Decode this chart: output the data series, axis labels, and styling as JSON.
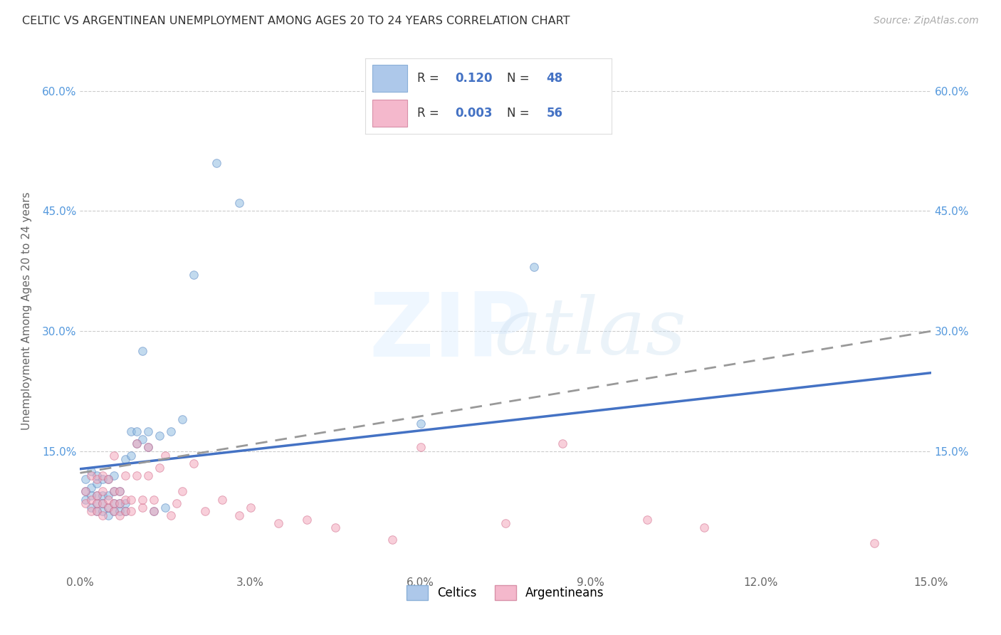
{
  "title": "CELTIC VS ARGENTINEAN UNEMPLOYMENT AMONG AGES 20 TO 24 YEARS CORRELATION CHART",
  "source": "Source: ZipAtlas.com",
  "ylabel": "Unemployment Among Ages 20 to 24 years",
  "xlim": [
    0.0,
    0.15
  ],
  "ylim": [
    0.0,
    0.65
  ],
  "xticks": [
    0.0,
    0.03,
    0.06,
    0.09,
    0.12,
    0.15
  ],
  "yticks": [
    0.15,
    0.3,
    0.45,
    0.6
  ],
  "xticklabels": [
    "0.0%",
    "3.0%",
    "6.0%",
    "9.0%",
    "12.0%",
    "15.0%"
  ],
  "yticklabels": [
    "15.0%",
    "30.0%",
    "45.0%",
    "60.0%"
  ],
  "celtics_color": "#90bce0",
  "argentineans_color": "#f4a8bc",
  "celtics_edge": "#5080c0",
  "argentineans_edge": "#d06888",
  "trend_celtic_color": "#4472c4",
  "trend_arg_color": "#c87898",
  "background_color": "#ffffff",
  "grid_color": "#cccccc",
  "marker_size": 70,
  "marker_alpha": 0.55,
  "celtics_R": "0.120",
  "celtics_N": "48",
  "argentineans_R": "0.003",
  "argentineans_N": "56",
  "celtics_legend_color": "#adc8ea",
  "argentineans_legend_color": "#f4b8cc",
  "celtics_x": [
    0.001,
    0.001,
    0.001,
    0.002,
    0.002,
    0.002,
    0.002,
    0.003,
    0.003,
    0.003,
    0.003,
    0.003,
    0.004,
    0.004,
    0.004,
    0.004,
    0.005,
    0.005,
    0.005,
    0.005,
    0.006,
    0.006,
    0.006,
    0.006,
    0.007,
    0.007,
    0.007,
    0.008,
    0.008,
    0.008,
    0.009,
    0.009,
    0.01,
    0.01,
    0.011,
    0.011,
    0.012,
    0.012,
    0.013,
    0.014,
    0.015,
    0.016,
    0.018,
    0.02,
    0.024,
    0.028,
    0.06,
    0.08
  ],
  "celtics_y": [
    0.09,
    0.1,
    0.115,
    0.08,
    0.095,
    0.105,
    0.125,
    0.075,
    0.085,
    0.095,
    0.11,
    0.12,
    0.075,
    0.085,
    0.095,
    0.115,
    0.07,
    0.08,
    0.095,
    0.115,
    0.075,
    0.085,
    0.1,
    0.12,
    0.075,
    0.085,
    0.1,
    0.075,
    0.085,
    0.14,
    0.145,
    0.175,
    0.16,
    0.175,
    0.165,
    0.275,
    0.155,
    0.175,
    0.075,
    0.17,
    0.08,
    0.175,
    0.19,
    0.37,
    0.51,
    0.46,
    0.185,
    0.38
  ],
  "argentineans_x": [
    0.001,
    0.001,
    0.002,
    0.002,
    0.002,
    0.003,
    0.003,
    0.003,
    0.003,
    0.004,
    0.004,
    0.004,
    0.004,
    0.005,
    0.005,
    0.005,
    0.006,
    0.006,
    0.006,
    0.006,
    0.007,
    0.007,
    0.007,
    0.008,
    0.008,
    0.008,
    0.009,
    0.009,
    0.01,
    0.01,
    0.011,
    0.011,
    0.012,
    0.012,
    0.013,
    0.013,
    0.014,
    0.015,
    0.016,
    0.017,
    0.018,
    0.02,
    0.022,
    0.025,
    0.028,
    0.03,
    0.035,
    0.04,
    0.045,
    0.055,
    0.06,
    0.075,
    0.085,
    0.1,
    0.11,
    0.14
  ],
  "argentineans_y": [
    0.085,
    0.1,
    0.075,
    0.09,
    0.12,
    0.075,
    0.085,
    0.095,
    0.115,
    0.07,
    0.085,
    0.1,
    0.12,
    0.08,
    0.09,
    0.115,
    0.075,
    0.085,
    0.1,
    0.145,
    0.07,
    0.085,
    0.1,
    0.075,
    0.09,
    0.12,
    0.075,
    0.09,
    0.12,
    0.16,
    0.08,
    0.09,
    0.12,
    0.155,
    0.075,
    0.09,
    0.13,
    0.145,
    0.07,
    0.085,
    0.1,
    0.135,
    0.075,
    0.09,
    0.07,
    0.08,
    0.06,
    0.065,
    0.055,
    0.04,
    0.155,
    0.06,
    0.16,
    0.065,
    0.055,
    0.035
  ],
  "celtic_trend_x0": 0.0,
  "celtic_trend_y0": 0.128,
  "celtic_trend_x1": 0.15,
  "celtic_trend_y1": 0.248,
  "arg_trend_x0": 0.0,
  "arg_trend_y0": 0.123,
  "arg_trend_x1": 0.15,
  "arg_trend_y1": 0.3
}
